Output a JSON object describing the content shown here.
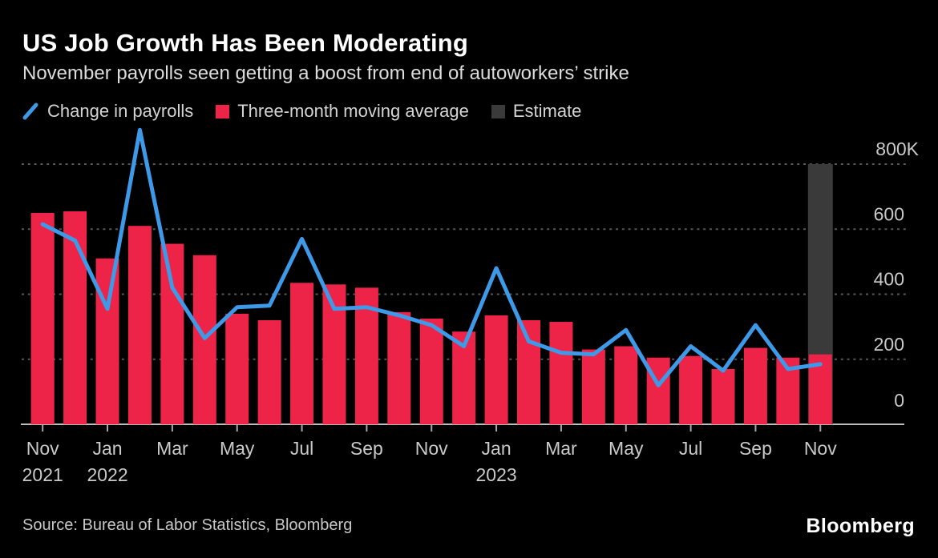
{
  "header": {
    "title": "US Job Growth Has Been Moderating",
    "subtitle": "November payrolls seen getting a boost from end of autoworkers’ strike"
  },
  "legend": {
    "items": [
      {
        "label": "Change in payrolls",
        "type": "line",
        "color": "#3D9AE8"
      },
      {
        "label": "Three-month moving average",
        "type": "bar",
        "color": "#ED2448"
      },
      {
        "label": "Estimate",
        "type": "bar",
        "color": "#3A3A3A"
      }
    ]
  },
  "footer": {
    "source": "Source: Bureau of Labor Statistics, Bloomberg",
    "logo": "Bloomberg"
  },
  "chart_data": {
    "type": "bar+line",
    "title": "US Job Growth Has Been Moderating",
    "subtitle": "November payrolls seen getting a boost from end of autoworkers’ strike",
    "unit": "thousands of jobs (K)",
    "background": "#000000",
    "grid": "dashed-horizontal",
    "legend_position": "top",
    "ylim": [
      0,
      800
    ],
    "categories": [
      "Nov 2021",
      "Dec 2021",
      "Jan 2022",
      "Feb 2022",
      "Mar 2022",
      "Apr 2022",
      "May 2022",
      "Jun 2022",
      "Jul 2022",
      "Aug 2022",
      "Sep 2022",
      "Oct 2022",
      "Nov 2022",
      "Dec 2022",
      "Jan 2023",
      "Feb 2023",
      "Mar 2023",
      "Apr 2023",
      "May 2023",
      "Jun 2023",
      "Jul 2023",
      "Aug 2023",
      "Sep 2023",
      "Oct 2023",
      "Nov 2023"
    ],
    "series": [
      {
        "name": "Change in payrolls",
        "type": "line",
        "color": "#3D9AE8",
        "values": [
          615,
          565,
          355,
          905,
          420,
          265,
          360,
          365,
          570,
          355,
          360,
          335,
          305,
          240,
          480,
          255,
          220,
          215,
          290,
          120,
          240,
          165,
          305,
          170,
          185
        ]
      },
      {
        "name": "Three-month moving average",
        "type": "bar",
        "color": "#ED2448",
        "values": [
          650,
          655,
          510,
          610,
          555,
          520,
          340,
          320,
          435,
          430,
          420,
          345,
          325,
          285,
          335,
          320,
          315,
          230,
          240,
          205,
          210,
          170,
          235,
          205,
          215
        ]
      },
      {
        "name": "Estimate",
        "type": "bar",
        "color": "#3A3A3A",
        "values": [
          null,
          null,
          null,
          null,
          null,
          null,
          null,
          null,
          null,
          null,
          null,
          null,
          null,
          null,
          null,
          null,
          null,
          null,
          null,
          null,
          null,
          null,
          null,
          null,
          800
        ]
      }
    ],
    "y_ticks": [
      {
        "value": 0,
        "label": "0"
      },
      {
        "value": 200,
        "label": "200"
      },
      {
        "value": 400,
        "label": "400"
      },
      {
        "value": 600,
        "label": "600"
      },
      {
        "value": 800,
        "label": "800K"
      }
    ],
    "x_ticks": [
      {
        "index": 0,
        "label": "Nov",
        "year": "2021"
      },
      {
        "index": 2,
        "label": "Jan",
        "year": "2022"
      },
      {
        "index": 4,
        "label": "Mar"
      },
      {
        "index": 6,
        "label": "May"
      },
      {
        "index": 8,
        "label": "Jul"
      },
      {
        "index": 10,
        "label": "Sep"
      },
      {
        "index": 12,
        "label": "Nov"
      },
      {
        "index": 14,
        "label": "Jan",
        "year": "2023"
      },
      {
        "index": 16,
        "label": "Mar"
      },
      {
        "index": 18,
        "label": "May"
      },
      {
        "index": 20,
        "label": "Jul"
      },
      {
        "index": 22,
        "label": "Sep"
      },
      {
        "index": 24,
        "label": "Nov"
      }
    ],
    "axis_colors": {
      "grid": "#575757",
      "baseline": "#BDBDBD",
      "tick": "#A8A8A8",
      "text": "#C9C9C9"
    }
  }
}
